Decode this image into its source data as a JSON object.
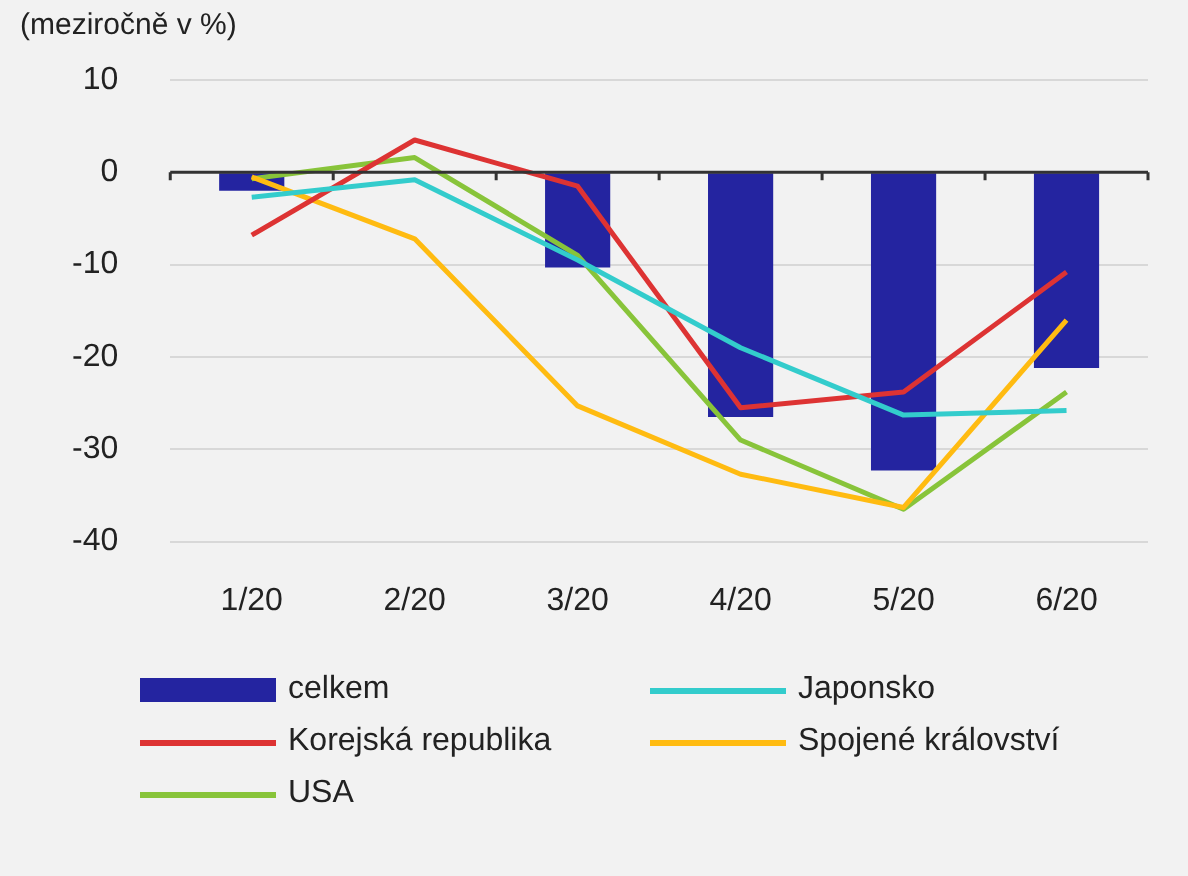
{
  "chart_data": {
    "type": "bar",
    "title": "(meziročně v %)",
    "categories": [
      "1/20",
      "2/20",
      "3/20",
      "4/20",
      "5/20",
      "6/20"
    ],
    "series": [
      {
        "name": "celkem",
        "color": "#2424a0",
        "values": [
          -2,
          0,
          -10.3,
          -26.5,
          -32.3,
          -21.2
        ]
      },
      {
        "name": "Japonsko",
        "type": "line",
        "color": "#33cccc",
        "values": [
          -2.7,
          -0.8,
          -9.5,
          -19,
          -26.3,
          -25.8
        ]
      },
      {
        "name": "Korejská republika",
        "type": "line",
        "color": "#dd3333",
        "values": [
          -6.8,
          3.5,
          -1.5,
          -25.5,
          -23.8,
          -10.8
        ]
      },
      {
        "name": "Spojené království",
        "type": "line",
        "color": "#ffbb11",
        "values": [
          -0.5,
          -7.2,
          -25.3,
          -32.7,
          -36.3,
          -16
        ]
      },
      {
        "name": "USA",
        "type": "line",
        "color": "#88c43a",
        "values": [
          -0.7,
          1.6,
          -9,
          -29,
          -36.5,
          -23.8
        ]
      }
    ],
    "ylim": [
      -40,
      10
    ],
    "yticks": [
      -40,
      -30,
      -20,
      -10,
      0,
      10
    ],
    "grid": "y",
    "legend": "bottom",
    "marker": "none",
    "line_style": "solid"
  }
}
